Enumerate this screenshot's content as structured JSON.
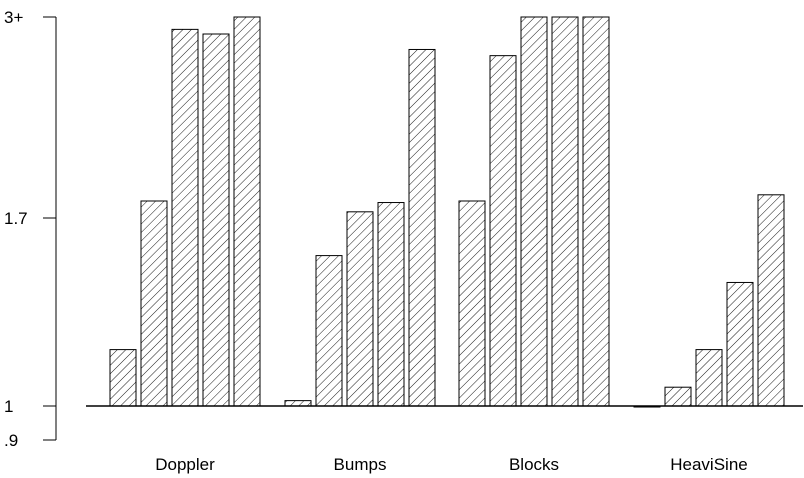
{
  "chart_data": {
    "type": "bar",
    "categories": [
      "Doppler",
      "Bumps",
      "Blocks",
      "HeaviSine"
    ],
    "series_per_group": 5,
    "values": [
      [
        1.21,
        1.81,
        2.92,
        2.89,
        3.0
      ],
      [
        1.02,
        1.56,
        1.74,
        1.8,
        2.79
      ],
      [
        1.81,
        2.75,
        3.0,
        3.0,
        3.0
      ],
      [
        0.997,
        1.07,
        1.21,
        1.46,
        1.85
      ]
    ],
    "baseline": 1,
    "ylim": [
      0.9,
      3.0
    ],
    "yticks": [
      {
        "value": 3.0,
        "label": "3+"
      },
      {
        "value": 1.7,
        "label": "1.7"
      },
      {
        "value": 1.0,
        "label": "1"
      },
      {
        "value": 0.9,
        "label": ".9"
      }
    ],
    "title": "",
    "xlabel": "",
    "ylabel": "",
    "bar_fill": "hatched",
    "colors": {
      "ink": "#000000",
      "background": "#ffffff"
    }
  }
}
